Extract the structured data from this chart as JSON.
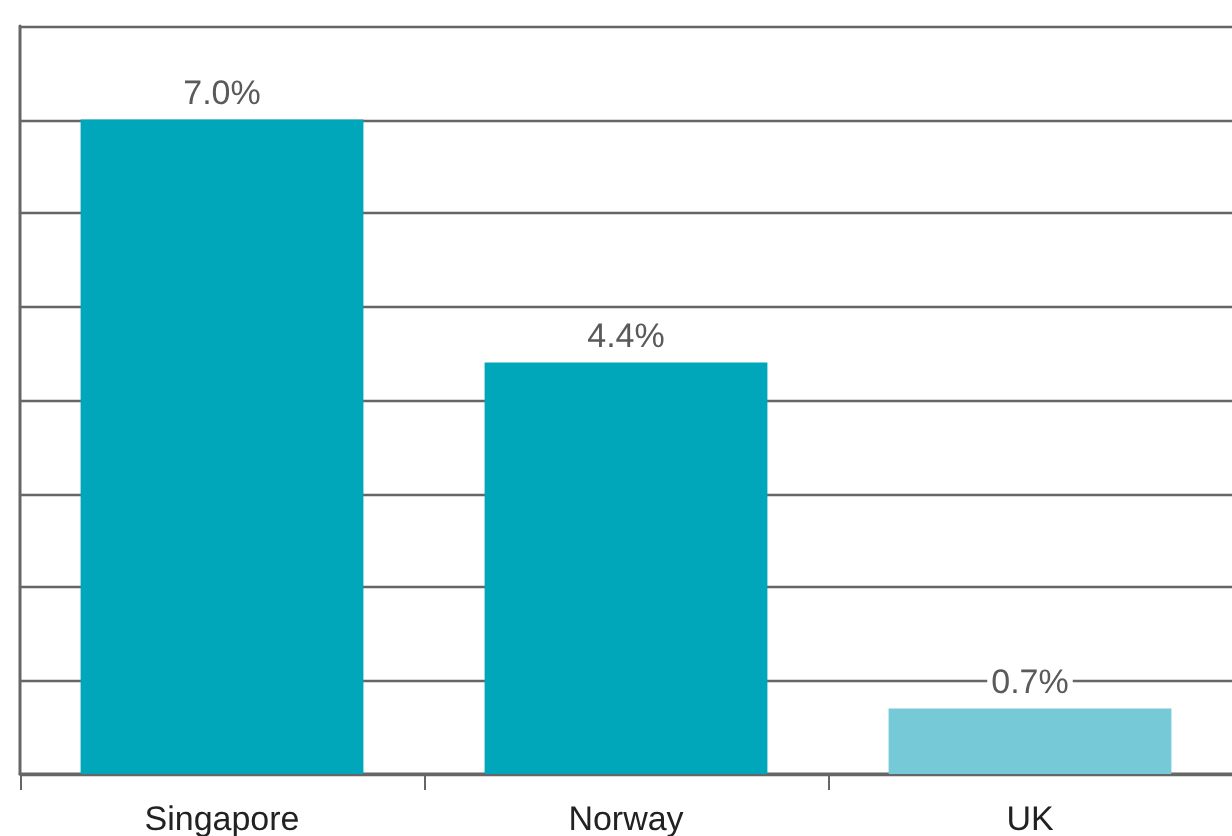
{
  "chart_data": {
    "type": "bar",
    "categories": [
      "Singapore",
      "Norway",
      "UK"
    ],
    "values": [
      7.0,
      4.4,
      0.7
    ],
    "colors": [
      "#00a6b9",
      "#00a6b9",
      "#76c9d6"
    ],
    "value_labels": [
      "7.0%",
      "4.4%",
      "0.7%"
    ],
    "ylim": [
      0,
      8
    ],
    "yticks": [
      0,
      1,
      2,
      3,
      4,
      5,
      6,
      7,
      8
    ],
    "tick_labels": "x",
    "grid": "y"
  }
}
